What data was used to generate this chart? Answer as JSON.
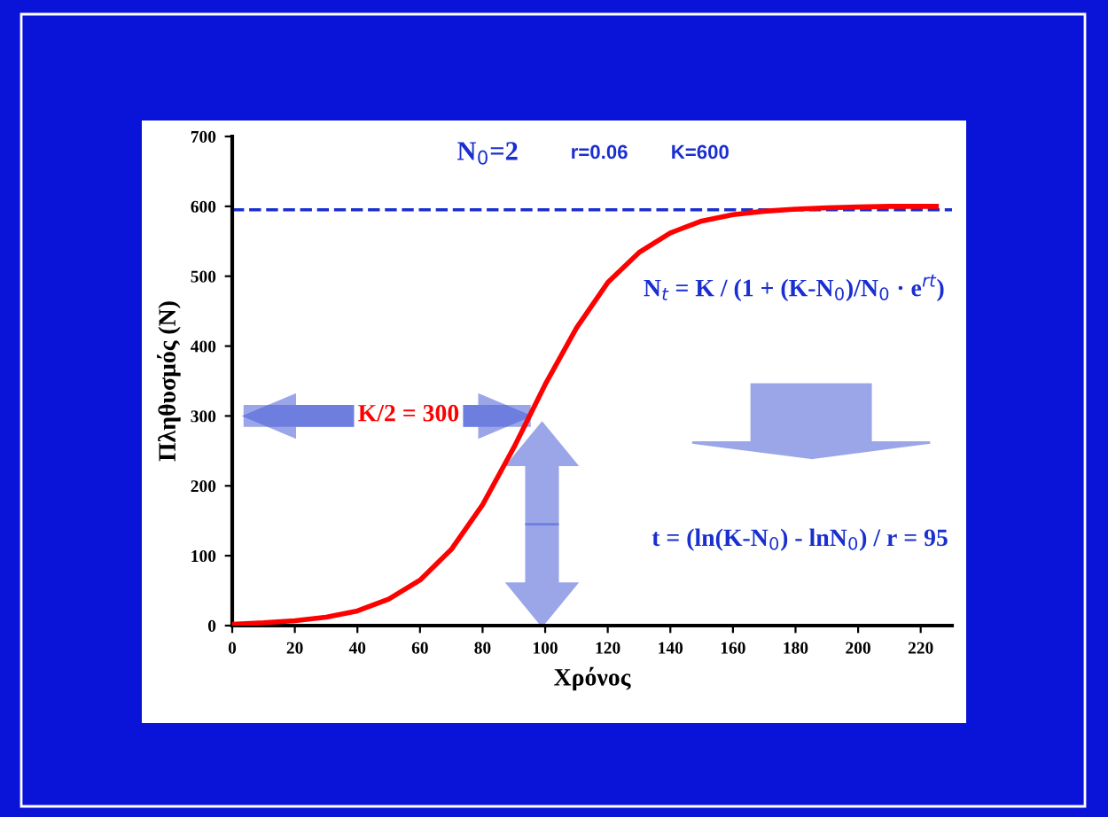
{
  "chart_data": {
    "type": "line",
    "xlabel": "Χρόνος",
    "ylabel": "Πληθυσμός (N)",
    "x": [
      0,
      10,
      20,
      30,
      40,
      50,
      60,
      70,
      80,
      90,
      95,
      100,
      110,
      120,
      130,
      140,
      150,
      160,
      170,
      180,
      190,
      200,
      210,
      225
    ],
    "series": [
      {
        "color": "#ff0000",
        "values": [
          2,
          4,
          7,
          12,
          21,
          38,
          65,
          109,
          173,
          255,
          300,
          345,
          426,
          491,
          534,
          562,
          579,
          588,
          593,
          596,
          598,
          599,
          600,
          600
        ]
      }
    ],
    "xlim": [
      0,
      230
    ],
    "xticks": [
      0,
      20,
      40,
      60,
      80,
      100,
      120,
      140,
      160,
      180,
      200,
      220
    ],
    "ylim": [
      0,
      700
    ],
    "yticks": [
      0,
      100,
      200,
      300,
      400,
      500,
      600,
      700
    ],
    "ref_lines": [
      {
        "axis": "y",
        "value": 595,
        "color": "#1a2fd0",
        "line_style": "dashed"
      }
    ],
    "annotations": [
      "N$_{0}$=2",
      "r=0.06",
      "K=600",
      "N$_{t}$ = K / (1 + (K-N$_{0}$)/N$_{0}$ · e$^{rt}$)",
      "K/2 = 300",
      "t = (ln(K-N$_{0}$) - lnN$_{0}$) / r = 95"
    ],
    "grid": false,
    "legend": false,
    "marker": "none",
    "line_style": "solid"
  }
}
